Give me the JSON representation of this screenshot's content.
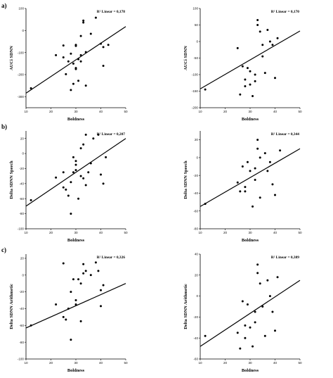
{
  "panel_labels": [
    "a)",
    "b)",
    "c)"
  ],
  "chart_data": [
    {
      "type": "scatter",
      "panel": "a)",
      "title": "",
      "r2_label": "R² Linear = 0,178",
      "xlabel": "Boldness",
      "ylabel": "AUCi SDNN",
      "xlim": [
        10,
        50
      ],
      "ylim": [
        -350,
        100
      ],
      "xticks": [
        10,
        20,
        30,
        40,
        50
      ],
      "xtick_labels": [
        "10",
        "20",
        "30",
        "40",
        "50"
      ],
      "yticks": [
        100,
        0,
        -100,
        -200,
        -300
      ],
      "ytick_labels": [
        "100",
        "0",
        "-100",
        "-200",
        "-300"
      ],
      "points": [
        [
          12,
          -262
        ],
        [
          22,
          -112
        ],
        [
          25,
          -68
        ],
        [
          25,
          -122
        ],
        [
          26,
          -198
        ],
        [
          27,
          -140
        ],
        [
          28,
          -105
        ],
        [
          28,
          -270
        ],
        [
          29,
          -150
        ],
        [
          29,
          -242
        ],
        [
          30,
          -65
        ],
        [
          30,
          -70
        ],
        [
          30,
          -170
        ],
        [
          30,
          -175
        ],
        [
          31,
          -228
        ],
        [
          31,
          -130
        ],
        [
          32,
          -140
        ],
        [
          32,
          -112
        ],
        [
          32,
          -25
        ],
        [
          33,
          36
        ],
        [
          33,
          45
        ],
        [
          34,
          -250
        ],
        [
          34,
          -98
        ],
        [
          36,
          -15
        ],
        [
          38,
          58
        ],
        [
          40,
          -60
        ],
        [
          41,
          -160
        ],
        [
          41,
          -75
        ],
        [
          43,
          -65
        ]
      ],
      "fit": [
        [
          10,
          -284
        ],
        [
          50,
          18
        ]
      ]
    },
    {
      "type": "scatter",
      "panel": "a)",
      "title": "",
      "r2_label": "R² Linear = 0,170",
      "xlabel": "Boldness",
      "ylabel": "AUCi SDNN",
      "xlim": [
        10,
        50
      ],
      "ylim": [
        -200,
        100
      ],
      "xticks": [
        10,
        20,
        30,
        40,
        50
      ],
      "xtick_labels": [
        "10",
        "20",
        "30",
        "40",
        "50"
      ],
      "yticks": [
        100,
        50,
        0,
        -50,
        -100,
        -150,
        -200
      ],
      "ytick_labels": [
        "100",
        "50",
        "0",
        "-50",
        "-100",
        "-150",
        "-200"
      ],
      "points": [
        [
          12,
          -145
        ],
        [
          25,
          -20
        ],
        [
          26,
          -160
        ],
        [
          27,
          -75
        ],
        [
          28,
          -115
        ],
        [
          28,
          -135
        ],
        [
          29,
          -80
        ],
        [
          30,
          -90
        ],
        [
          30,
          -130
        ],
        [
          31,
          -165
        ],
        [
          32,
          -120
        ],
        [
          32,
          -100
        ],
        [
          33,
          50
        ],
        [
          33,
          65
        ],
        [
          34,
          30
        ],
        [
          35,
          -10
        ],
        [
          35,
          -45
        ],
        [
          37,
          35
        ],
        [
          38,
          0
        ],
        [
          39,
          -10
        ],
        [
          40,
          -110
        ],
        [
          41,
          10
        ],
        [
          36,
          -95
        ]
      ],
      "fit": [
        [
          10,
          -143
        ],
        [
          50,
          32
        ]
      ]
    },
    {
      "type": "scatter",
      "panel": "b)",
      "title": "",
      "r2_label": "R² Linear = 0,207",
      "xlabel": "Boldness",
      "ylabel": "Delta SDNN Speech",
      "xlim": [
        10,
        50
      ],
      "ylim": [
        -100,
        30
      ],
      "xticks": [
        10,
        20,
        30,
        40,
        50
      ],
      "xtick_labels": [
        "10",
        "20",
        "30",
        "40",
        "50"
      ],
      "yticks": [
        20,
        0,
        -20,
        -40,
        -60,
        -80,
        -100
      ],
      "ytick_labels": [
        "20",
        "0",
        "-20",
        "-40",
        "-60",
        "-80",
        "-100"
      ],
      "points": [
        [
          12,
          -62
        ],
        [
          22,
          -32
        ],
        [
          25,
          -25
        ],
        [
          25,
          -45
        ],
        [
          26,
          -48
        ],
        [
          27,
          -56
        ],
        [
          28,
          -38
        ],
        [
          28,
          -80
        ],
        [
          29,
          -5
        ],
        [
          29,
          -25
        ],
        [
          30,
          -10
        ],
        [
          30,
          -15
        ],
        [
          30,
          -22
        ],
        [
          31,
          -60
        ],
        [
          32,
          7
        ],
        [
          32,
          -30
        ],
        [
          33,
          12
        ],
        [
          33,
          -33
        ],
        [
          34,
          25
        ],
        [
          34,
          -42
        ],
        [
          35,
          -25
        ],
        [
          36,
          -13
        ],
        [
          37,
          20
        ],
        [
          39,
          25
        ],
        [
          40,
          -28
        ],
        [
          41,
          -40
        ],
        [
          42,
          -5
        ]
      ],
      "fit": [
        [
          10,
          -70
        ],
        [
          50,
          20
        ]
      ]
    },
    {
      "type": "scatter",
      "panel": "b)",
      "title": "",
      "r2_label": "R² Linear = 0,344",
      "xlabel": "Boldness",
      "ylabel": "Delta SDNN Speech",
      "xlim": [
        10,
        50
      ],
      "ylim": [
        -80,
        30
      ],
      "xticks": [
        10,
        20,
        30,
        40,
        50
      ],
      "xtick_labels": [
        "10",
        "20",
        "30",
        "40",
        "50"
      ],
      "yticks": [
        20,
        0,
        -20,
        -40,
        -60,
        -80
      ],
      "ytick_labels": [
        "20",
        "0",
        "-20",
        "-40",
        "-60",
        "-80"
      ],
      "points": [
        [
          12,
          -52
        ],
        [
          25,
          -28
        ],
        [
          26,
          -38
        ],
        [
          27,
          -10
        ],
        [
          28,
          -33
        ],
        [
          28,
          -38
        ],
        [
          29,
          -5
        ],
        [
          30,
          -15
        ],
        [
          31,
          -55
        ],
        [
          32,
          -12
        ],
        [
          32,
          -25
        ],
        [
          33,
          20
        ],
        [
          33,
          10
        ],
        [
          34,
          -45
        ],
        [
          34,
          0
        ],
        [
          36,
          5
        ],
        [
          37,
          -15
        ],
        [
          38,
          -5
        ],
        [
          39,
          -30
        ],
        [
          40,
          -42
        ],
        [
          42,
          8
        ]
      ],
      "fit": [
        [
          10,
          -55
        ],
        [
          50,
          10
        ]
      ]
    },
    {
      "type": "scatter",
      "panel": "c)",
      "title": "",
      "r2_label": "R² Linear = 0,326",
      "xlabel": "Boldness",
      "ylabel": "Delta SDNN Arithmetic",
      "xlim": [
        10,
        50
      ],
      "ylim": [
        -100,
        25
      ],
      "xticks": [
        10,
        20,
        30,
        40,
        50
      ],
      "xtick_labels": [
        "10",
        "20",
        "30",
        "40",
        "50"
      ],
      "yticks": [
        20,
        0,
        -20,
        -40,
        -60,
        -80,
        -100
      ],
      "ytick_labels": [
        "20",
        "0",
        "-20",
        "-40",
        "-60",
        "-80",
        "-100"
      ],
      "points": [
        [
          12,
          -60
        ],
        [
          22,
          -35
        ],
        [
          25,
          -50
        ],
        [
          25,
          14
        ],
        [
          26,
          -53
        ],
        [
          27,
          -40
        ],
        [
          28,
          -20
        ],
        [
          28,
          -77
        ],
        [
          29,
          -5
        ],
        [
          30,
          -35
        ],
        [
          30,
          -30
        ],
        [
          31,
          -5
        ],
        [
          32,
          -10
        ],
        [
          32,
          -55
        ],
        [
          33,
          13
        ],
        [
          33,
          2
        ],
        [
          34,
          5
        ],
        [
          36,
          0
        ],
        [
          38,
          15
        ],
        [
          39,
          5
        ],
        [
          40,
          -37
        ],
        [
          40,
          -18
        ],
        [
          41,
          -12
        ]
      ],
      "fit": [
        [
          10,
          -63
        ],
        [
          50,
          -10
        ]
      ]
    },
    {
      "type": "scatter",
      "panel": "c)",
      "title": "",
      "r2_label": "R² Linear = 0,389",
      "xlabel": "Boldness",
      "ylabel": "Delta SDNN Arithmetic",
      "xlim": [
        10,
        50
      ],
      "ylim": [
        -60,
        40
      ],
      "xticks": [
        10,
        20,
        30,
        40,
        50
      ],
      "xtick_labels": [
        "10",
        "20",
        "30",
        "40",
        "50"
      ],
      "yticks": [
        40,
        20,
        0,
        -20,
        -40,
        -60
      ],
      "ytick_labels": [
        "40",
        "20",
        "0",
        "-20",
        "-40",
        "-60"
      ],
      "points": [
        [
          12,
          -38
        ],
        [
          25,
          -35
        ],
        [
          26,
          -50
        ],
        [
          27,
          -5
        ],
        [
          28,
          -28
        ],
        [
          28,
          -40
        ],
        [
          29,
          -8
        ],
        [
          30,
          -30
        ],
        [
          31,
          -48
        ],
        [
          32,
          -15
        ],
        [
          32,
          -25
        ],
        [
          33,
          30
        ],
        [
          33,
          22
        ],
        [
          34,
          12
        ],
        [
          35,
          -10
        ],
        [
          36,
          -38
        ],
        [
          37,
          15
        ],
        [
          38,
          0
        ],
        [
          39,
          -15
        ],
        [
          40,
          -33
        ],
        [
          41,
          18
        ]
      ],
      "fit": [
        [
          10,
          -48
        ],
        [
          50,
          15
        ]
      ]
    }
  ]
}
